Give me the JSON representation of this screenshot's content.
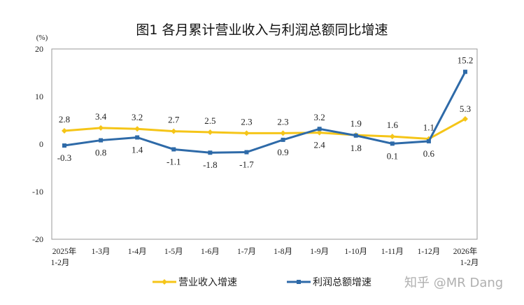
{
  "chart_data": {
    "type": "line",
    "title": "图1  各月累计营业收入与利润总额同比增速",
    "ylabel": "(%)",
    "ylim": [
      -20,
      20
    ],
    "yticks": [
      20,
      10,
      0,
      -10,
      -20
    ],
    "grid": false,
    "legend_position": "bottom",
    "categories": [
      [
        "2025年",
        "1-2月"
      ],
      [
        "1-3月"
      ],
      [
        "1-4月"
      ],
      [
        "1-5月"
      ],
      [
        "1-6月"
      ],
      [
        "1-7月"
      ],
      [
        "1-8月"
      ],
      [
        "1-9月"
      ],
      [
        "1-10月"
      ],
      [
        "1-11月"
      ],
      [
        "1-12月"
      ],
      [
        "2026年",
        "1-2月"
      ]
    ],
    "series": [
      {
        "name": "营业收入增速",
        "color": "#f5c518",
        "marker": "diamond",
        "values": [
          2.8,
          3.4,
          3.2,
          2.7,
          2.5,
          2.3,
          2.3,
          2.4,
          1.9,
          1.6,
          1.1,
          5.3
        ]
      },
      {
        "name": "利润总额增速",
        "color": "#2e6aa8",
        "marker": "square",
        "values": [
          -0.3,
          0.8,
          1.4,
          -1.1,
          -1.8,
          -1.7,
          0.9,
          3.2,
          1.8,
          0.1,
          0.6,
          15.2
        ]
      }
    ]
  },
  "watermark": "知乎 @MR Dang"
}
